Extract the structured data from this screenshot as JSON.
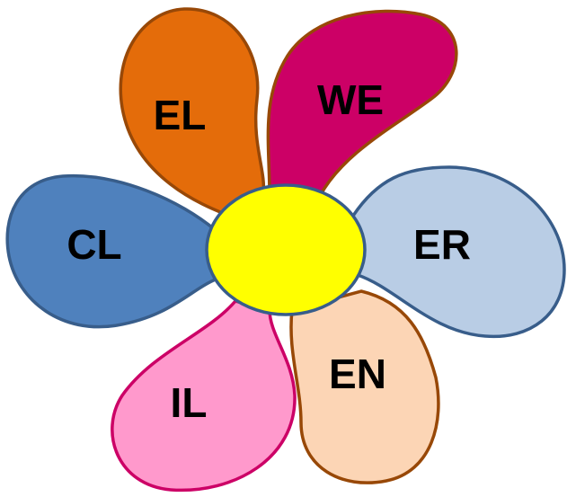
{
  "petals": [
    {
      "label": "EL"
    },
    {
      "label": "WE"
    },
    {
      "label": "CL"
    },
    {
      "label": "ER"
    },
    {
      "label": "IL"
    },
    {
      "label": "EN"
    }
  ]
}
